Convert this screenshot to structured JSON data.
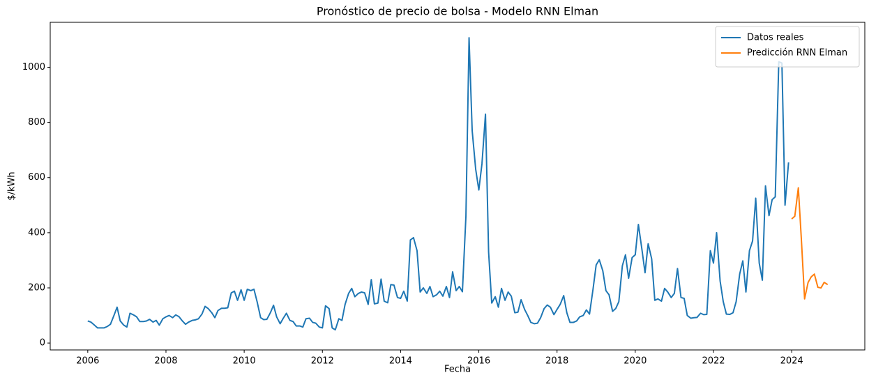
{
  "chart_data": {
    "type": "line",
    "title": "Pronóstico de precio de bolsa - Modelo RNN Elman",
    "x_label": "Fecha",
    "y_label": "$/kWh",
    "xlim": [
      2005.04,
      2025.87
    ],
    "ylim": [
      -25,
      1163
    ],
    "xticks": [
      2006,
      2008,
      2010,
      2012,
      2014,
      2016,
      2018,
      2020,
      2022,
      2024
    ],
    "yticks": [
      0,
      200,
      400,
      600,
      800,
      1000
    ],
    "legend": "upper right",
    "series": [
      {
        "name": "Datos reales",
        "color": "#1f77b4",
        "x": [
          2006.0,
          2006.08,
          2006.17,
          2006.25,
          2006.33,
          2006.42,
          2006.5,
          2006.58,
          2006.67,
          2006.75,
          2006.83,
          2006.92,
          2007.0,
          2007.08,
          2007.17,
          2007.25,
          2007.33,
          2007.42,
          2007.5,
          2007.58,
          2007.67,
          2007.75,
          2007.83,
          2007.92,
          2008.0,
          2008.08,
          2008.17,
          2008.25,
          2008.33,
          2008.42,
          2008.5,
          2008.58,
          2008.67,
          2008.75,
          2008.83,
          2008.92,
          2009.0,
          2009.08,
          2009.17,
          2009.25,
          2009.33,
          2009.42,
          2009.5,
          2009.58,
          2009.67,
          2009.75,
          2009.83,
          2009.92,
          2010.0,
          2010.08,
          2010.17,
          2010.25,
          2010.33,
          2010.42,
          2010.5,
          2010.58,
          2010.67,
          2010.75,
          2010.83,
          2010.92,
          2011.0,
          2011.08,
          2011.17,
          2011.25,
          2011.33,
          2011.42,
          2011.5,
          2011.58,
          2011.67,
          2011.75,
          2011.83,
          2011.92,
          2012.0,
          2012.08,
          2012.17,
          2012.25,
          2012.33,
          2012.42,
          2012.5,
          2012.58,
          2012.67,
          2012.75,
          2012.83,
          2012.92,
          2013.0,
          2013.08,
          2013.17,
          2013.25,
          2013.33,
          2013.42,
          2013.5,
          2013.58,
          2013.67,
          2013.75,
          2013.83,
          2013.92,
          2014.0,
          2014.08,
          2014.17,
          2014.25,
          2014.33,
          2014.42,
          2014.5,
          2014.58,
          2014.67,
          2014.75,
          2014.83,
          2014.92,
          2015.0,
          2015.08,
          2015.17,
          2015.25,
          2015.33,
          2015.42,
          2015.5,
          2015.58,
          2015.67,
          2015.75,
          2015.83,
          2015.92,
          2016.0,
          2016.08,
          2016.17,
          2016.25,
          2016.33,
          2016.42,
          2016.5,
          2016.58,
          2016.67,
          2016.75,
          2016.83,
          2016.92,
          2017.0,
          2017.08,
          2017.17,
          2017.25,
          2017.33,
          2017.42,
          2017.5,
          2017.58,
          2017.67,
          2017.75,
          2017.83,
          2017.92,
          2018.0,
          2018.08,
          2018.17,
          2018.25,
          2018.33,
          2018.42,
          2018.5,
          2018.58,
          2018.67,
          2018.75,
          2018.83,
          2018.92,
          2019.0,
          2019.08,
          2019.17,
          2019.25,
          2019.33,
          2019.42,
          2019.5,
          2019.58,
          2019.67,
          2019.75,
          2019.83,
          2019.92,
          2020.0,
          2020.08,
          2020.17,
          2020.25,
          2020.33,
          2020.42,
          2020.5,
          2020.58,
          2020.67,
          2020.75,
          2020.83,
          2020.92,
          2021.0,
          2021.08,
          2021.17,
          2021.25,
          2021.33,
          2021.42,
          2021.5,
          2021.58,
          2021.67,
          2021.75,
          2021.83,
          2021.92,
          2022.0,
          2022.08,
          2022.17,
          2022.25,
          2022.33,
          2022.42,
          2022.5,
          2022.58,
          2022.67,
          2022.75,
          2022.83,
          2022.92,
          2023.0,
          2023.08,
          2023.17,
          2023.25,
          2023.33,
          2023.42,
          2023.5,
          2023.58,
          2023.67,
          2023.75,
          2023.83,
          2023.92
        ],
        "values": [
          80,
          76,
          65,
          55,
          55,
          55,
          60,
          68,
          100,
          130,
          80,
          65,
          58,
          108,
          102,
          95,
          78,
          78,
          80,
          86,
          76,
          82,
          65,
          88,
          95,
          100,
          92,
          102,
          96,
          80,
          68,
          76,
          82,
          84,
          88,
          105,
          133,
          125,
          110,
          92,
          118,
          126,
          126,
          128,
          182,
          188,
          155,
          193,
          155,
          195,
          190,
          195,
          150,
          92,
          85,
          86,
          110,
          137,
          95,
          70,
          90,
          108,
          82,
          78,
          62,
          62,
          58,
          88,
          90,
          75,
          72,
          58,
          55,
          135,
          125,
          55,
          48,
          88,
          82,
          140,
          180,
          198,
          168,
          180,
          185,
          182,
          140,
          230,
          142,
          145,
          232,
          152,
          146,
          212,
          210,
          165,
          162,
          188,
          152,
          374,
          382,
          335,
          185,
          200,
          180,
          205,
          168,
          175,
          188,
          170,
          205,
          165,
          258,
          190,
          205,
          186,
          460,
          1107,
          770,
          630,
          555,
          650,
          830,
          330,
          145,
          168,
          130,
          198,
          155,
          185,
          170,
          110,
          112,
          157,
          122,
          100,
          75,
          70,
          72,
          92,
          125,
          138,
          130,
          103,
          122,
          140,
          172,
          110,
          75,
          75,
          80,
          95,
          100,
          120,
          105,
          195,
          283,
          302,
          262,
          190,
          175,
          115,
          125,
          150,
          280,
          320,
          235,
          310,
          320,
          430,
          340,
          255,
          360,
          305,
          155,
          160,
          152,
          198,
          185,
          165,
          180,
          270,
          165,
          162,
          100,
          90,
          92,
          93,
          108,
          103,
          104,
          335,
          290,
          400,
          225,
          150,
          105,
          104,
          110,
          150,
          250,
          298,
          185,
          335,
          370,
          525,
          290,
          228,
          570,
          462,
          520,
          530,
          1020,
          1015,
          500,
          655
        ]
      },
      {
        "name": "Predicción RNN Elman",
        "color": "#ff7f0e",
        "x": [
          2024.0,
          2024.08,
          2024.17,
          2024.25,
          2024.33,
          2024.42,
          2024.5,
          2024.58,
          2024.67,
          2024.75,
          2024.83,
          2024.92
        ],
        "values": [
          450,
          460,
          563,
          370,
          160,
          220,
          240,
          250,
          202,
          200,
          220,
          212
        ]
      }
    ]
  }
}
